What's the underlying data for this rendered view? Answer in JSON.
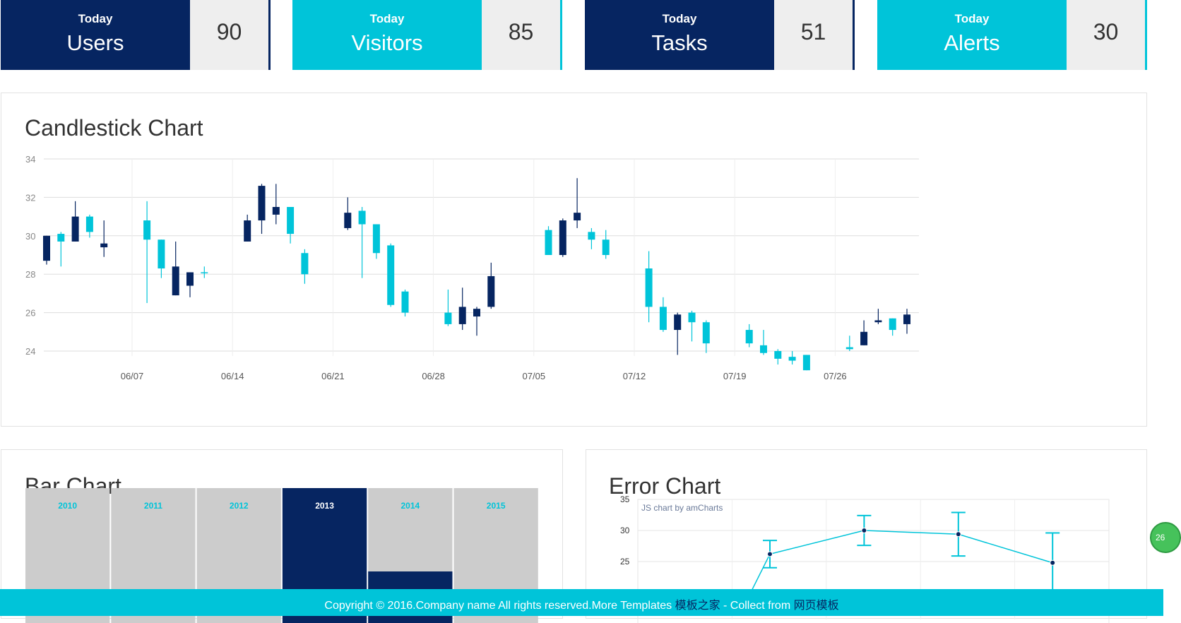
{
  "stats": [
    {
      "sub": "Today",
      "label": "Users",
      "value": "90",
      "color": "#062561"
    },
    {
      "sub": "Today",
      "label": "Visitors",
      "value": "85",
      "color": "#00c4d9"
    },
    {
      "sub": "Today",
      "label": "Tasks",
      "value": "51",
      "color": "#062561"
    },
    {
      "sub": "Today",
      "label": "Alerts",
      "value": "30",
      "color": "#00c4d9"
    }
  ],
  "candlestick": {
    "title": "Candlestick Chart",
    "chart_data": {
      "type": "candlestick",
      "y_ticks": [
        "34",
        "32",
        "30",
        "28",
        "26",
        "24"
      ],
      "ylim": [
        23.5,
        34
      ],
      "x_ticks": [
        "06/07",
        "06/14",
        "06/21",
        "06/28",
        "07/05",
        "07/12",
        "07/19",
        "07/26"
      ],
      "up_color": "#00c4d9",
      "down_color": "#062561",
      "candles": [
        {
          "day": 0,
          "o": 30.0,
          "c": 28.7,
          "h": 30.0,
          "l": 28.5
        },
        {
          "day": 1,
          "o": 29.7,
          "c": 30.1,
          "h": 30.2,
          "l": 28.4
        },
        {
          "day": 2,
          "o": 31.0,
          "c": 29.7,
          "h": 31.8,
          "l": 29.7
        },
        {
          "day": 3,
          "o": 30.2,
          "c": 31.0,
          "h": 31.1,
          "l": 29.9
        },
        {
          "day": 4,
          "o": 29.6,
          "c": 29.4,
          "h": 30.8,
          "l": 28.9
        },
        {
          "day": 7,
          "o": 29.8,
          "c": 30.8,
          "h": 31.8,
          "l": 26.5
        },
        {
          "day": 8,
          "o": 28.3,
          "c": 29.8,
          "h": 29.8,
          "l": 27.8
        },
        {
          "day": 9,
          "o": 28.4,
          "c": 26.9,
          "h": 29.7,
          "l": 26.9
        },
        {
          "day": 10,
          "o": 28.1,
          "c": 27.4,
          "h": 28.1,
          "l": 26.8
        },
        {
          "day": 11,
          "o": 28.1,
          "c": 28.1,
          "h": 28.4,
          "l": 27.8
        },
        {
          "day": 14,
          "o": 30.8,
          "c": 29.7,
          "h": 31.1,
          "l": 29.7
        },
        {
          "day": 15,
          "o": 32.6,
          "c": 30.8,
          "h": 32.7,
          "l": 30.1
        },
        {
          "day": 16,
          "o": 31.5,
          "c": 31.1,
          "h": 32.7,
          "l": 30.6
        },
        {
          "day": 17,
          "o": 30.1,
          "c": 31.5,
          "h": 31.5,
          "l": 29.6
        },
        {
          "day": 18,
          "o": 28.0,
          "c": 29.1,
          "h": 29.3,
          "l": 27.5
        },
        {
          "day": 21,
          "o": 31.2,
          "c": 30.4,
          "h": 32.0,
          "l": 30.3
        },
        {
          "day": 22,
          "o": 30.6,
          "c": 31.3,
          "h": 31.5,
          "l": 27.8
        },
        {
          "day": 23,
          "o": 29.1,
          "c": 30.6,
          "h": 30.6,
          "l": 28.8
        },
        {
          "day": 24,
          "o": 26.4,
          "c": 29.5,
          "h": 29.6,
          "l": 26.3
        },
        {
          "day": 25,
          "o": 26.0,
          "c": 27.1,
          "h": 27.2,
          "l": 25.8
        },
        {
          "day": 28,
          "o": 25.4,
          "c": 26.0,
          "h": 27.2,
          "l": 25.3
        },
        {
          "day": 29,
          "o": 26.3,
          "c": 25.4,
          "h": 27.3,
          "l": 25.1
        },
        {
          "day": 30,
          "o": 26.2,
          "c": 25.8,
          "h": 26.3,
          "l": 24.8
        },
        {
          "day": 31,
          "o": 27.9,
          "c": 26.3,
          "h": 28.6,
          "l": 26.2
        },
        {
          "day": 35,
          "o": 29.0,
          "c": 30.3,
          "h": 30.5,
          "l": 29.0
        },
        {
          "day": 36,
          "o": 30.8,
          "c": 29.0,
          "h": 30.9,
          "l": 28.9
        },
        {
          "day": 37,
          "o": 31.2,
          "c": 30.8,
          "h": 33.0,
          "l": 30.4
        },
        {
          "day": 38,
          "o": 29.8,
          "c": 30.2,
          "h": 30.4,
          "l": 29.3
        },
        {
          "day": 39,
          "o": 29.0,
          "c": 29.8,
          "h": 30.3,
          "l": 28.8
        },
        {
          "day": 42,
          "o": 26.3,
          "c": 28.3,
          "h": 29.2,
          "l": 25.5
        },
        {
          "day": 43,
          "o": 25.1,
          "c": 26.3,
          "h": 26.8,
          "l": 25.0
        },
        {
          "day": 44,
          "o": 25.9,
          "c": 25.1,
          "h": 26.0,
          "l": 23.8
        },
        {
          "day": 45,
          "o": 25.5,
          "c": 26.0,
          "h": 26.1,
          "l": 24.5
        },
        {
          "day": 46,
          "o": 24.4,
          "c": 25.5,
          "h": 25.6,
          "l": 23.9
        },
        {
          "day": 49,
          "o": 24.4,
          "c": 25.1,
          "h": 25.4,
          "l": 24.2
        },
        {
          "day": 50,
          "o": 23.9,
          "c": 24.3,
          "h": 25.1,
          "l": 23.8
        },
        {
          "day": 51,
          "o": 23.6,
          "c": 24.0,
          "h": 24.1,
          "l": 23.3
        },
        {
          "day": 52,
          "o": 23.5,
          "c": 23.7,
          "h": 24.0,
          "l": 23.3
        },
        {
          "day": 53,
          "o": 23.0,
          "c": 23.8,
          "h": 23.8,
          "l": 23.0
        },
        {
          "day": 56,
          "o": 24.1,
          "c": 24.2,
          "h": 24.8,
          "l": 24.0
        },
        {
          "day": 57,
          "o": 25.0,
          "c": 24.3,
          "h": 25.6,
          "l": 24.3
        },
        {
          "day": 58,
          "o": 25.6,
          "c": 25.5,
          "h": 26.2,
          "l": 25.4
        },
        {
          "day": 59,
          "o": 25.1,
          "c": 25.7,
          "h": 25.7,
          "l": 24.8
        },
        {
          "day": 60,
          "o": 25.9,
          "c": 25.4,
          "h": 26.2,
          "l": 24.9
        }
      ]
    }
  },
  "bar": {
    "title": "Bar Chart",
    "chart_data": {
      "type": "bar",
      "categories": [
        "2010",
        "2011",
        "2012",
        "2013",
        "2014",
        "2015"
      ],
      "values": [
        0,
        0,
        0,
        100,
        41,
        0
      ],
      "label_color": "#00c4d9",
      "highlight_label_color": "#ffffff"
    }
  },
  "error": {
    "title": "Error Chart",
    "credit": "JS chart by amCharts",
    "chart_data": {
      "type": "line",
      "y_ticks": [
        "35",
        "30",
        "25"
      ],
      "ylim": [
        24,
        35
      ],
      "points": [
        {
          "i": 1,
          "y": 26.2,
          "err": 2.2
        },
        {
          "i": 2,
          "y": 30.0,
          "err": 2.4
        },
        {
          "i": 3,
          "y": 29.4,
          "err": 3.5
        },
        {
          "i": 4,
          "y": 24.8,
          "err": 4.8
        }
      ],
      "color": "#00c4d9"
    }
  },
  "footer": {
    "text": "Copyright © 2016.Company name All rights reserved.More Templates ",
    "link1": "模板之家",
    "mid": " - Collect from ",
    "link2": "网页模板"
  },
  "badge": "26"
}
